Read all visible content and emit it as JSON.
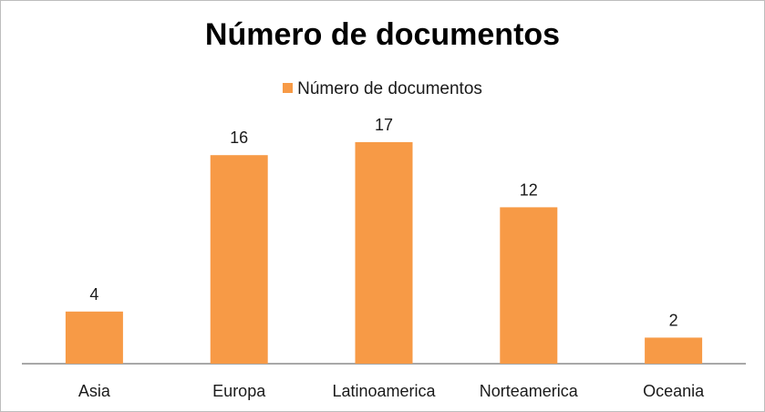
{
  "chart_data": {
    "type": "bar",
    "title": "Número de documentos",
    "categories": [
      "Asia",
      "Europa",
      "Latinoamerica",
      "Norteamerica",
      "Oceania"
    ],
    "series": [
      {
        "name": "Número de documentos",
        "values": [
          4,
          16,
          17,
          12,
          2
        ]
      }
    ],
    "data_labels": [
      "4",
      "16",
      "17",
      "12",
      "2"
    ],
    "xlabel": "",
    "ylabel": "",
    "ylim": [
      0,
      20
    ],
    "grid": false,
    "legend_position": "top",
    "colors": {
      "bar": "#f79a46",
      "axis": "#8c8c8c",
      "border": "#bdbdbd"
    }
  }
}
